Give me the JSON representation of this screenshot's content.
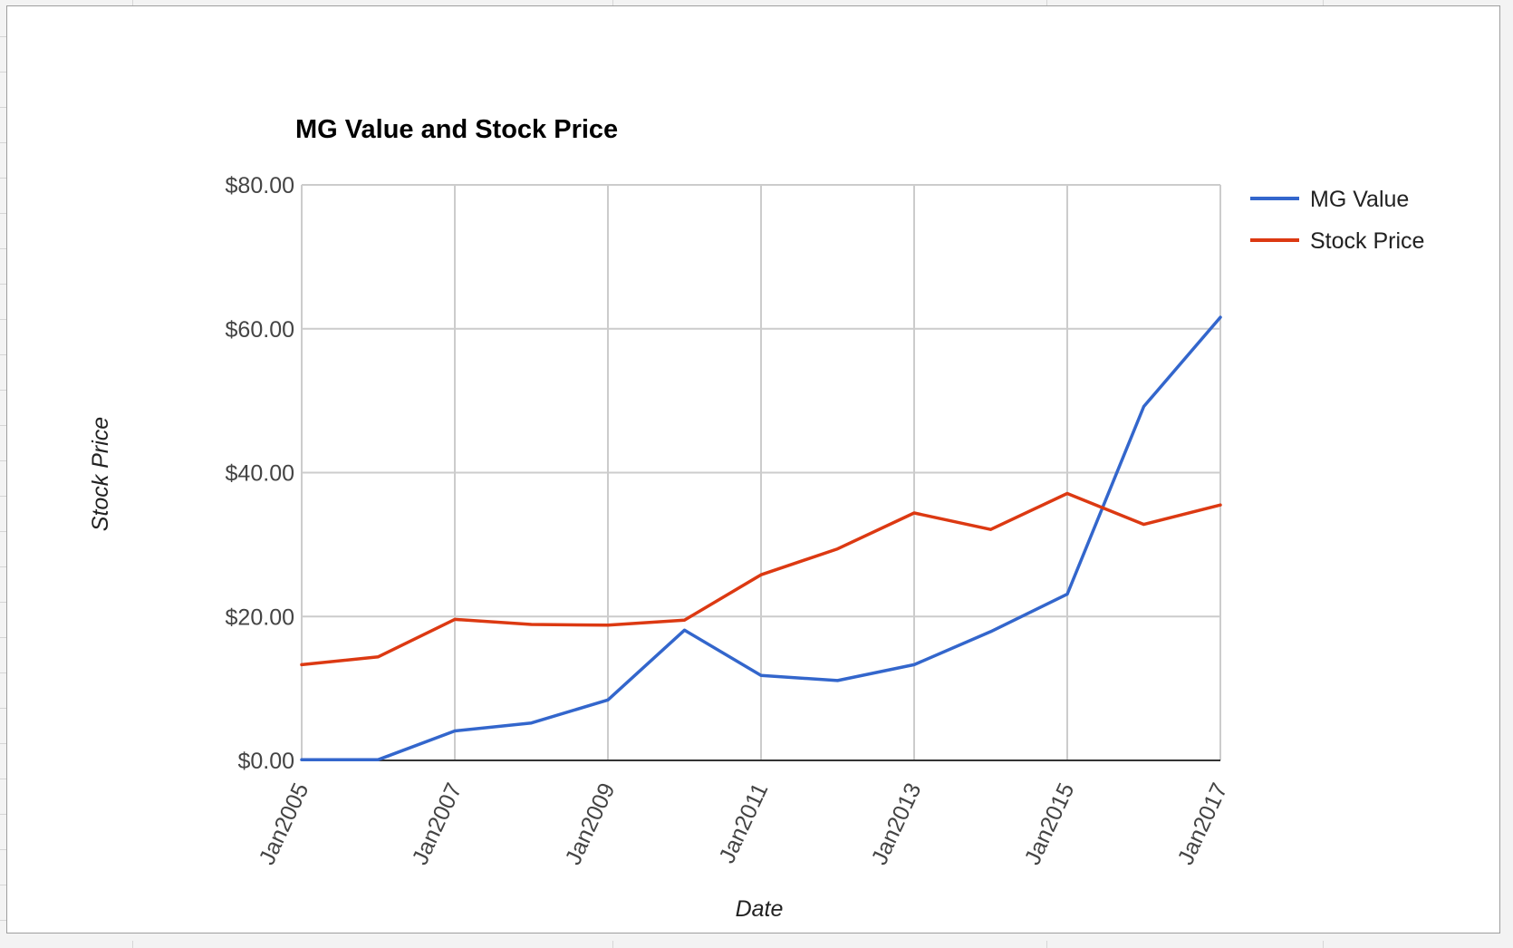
{
  "colors": {
    "mg_value": "#3366cc",
    "stock_price": "#dc3912",
    "grid": "#cccccc",
    "baseline": "#333333",
    "tick_text": "#444444",
    "title_text": "#000000"
  },
  "chart_data": {
    "type": "line",
    "title": "MG Value and Stock Price",
    "xlabel": "Date",
    "ylabel": "Stock Price",
    "x": [
      "Jan2005",
      "Jan2006",
      "Jan2007",
      "Jan2008",
      "Jan2009",
      "Jan2010",
      "Jan2011",
      "Jan2012",
      "Jan2013",
      "Jan2014",
      "Jan2015",
      "Jan2016",
      "Jan2017"
    ],
    "x_tick_labels": [
      "Jan2005",
      "Jan2007",
      "Jan2009",
      "Jan2011",
      "Jan2013",
      "Jan2015",
      "Jan2017"
    ],
    "y_tick_values": [
      0,
      20,
      40,
      60,
      80
    ],
    "y_tick_labels": [
      "$0.00",
      "$20.00",
      "$40.00",
      "$60.00",
      "$80.00"
    ],
    "ylim": [
      0,
      80
    ],
    "grid": true,
    "legend_position": "right",
    "series": [
      {
        "name": "MG Value",
        "color_key": "mg_value",
        "values": [
          0.1,
          0.1,
          4.1,
          5.2,
          8.4,
          18.1,
          11.8,
          11.1,
          13.3,
          17.9,
          23.1,
          49.2,
          61.6
        ]
      },
      {
        "name": "Stock Price",
        "color_key": "stock_price",
        "values": [
          13.3,
          14.4,
          19.6,
          18.9,
          18.8,
          19.5,
          25.8,
          29.4,
          34.4,
          32.1,
          37.1,
          32.8,
          35.5
        ]
      }
    ]
  }
}
